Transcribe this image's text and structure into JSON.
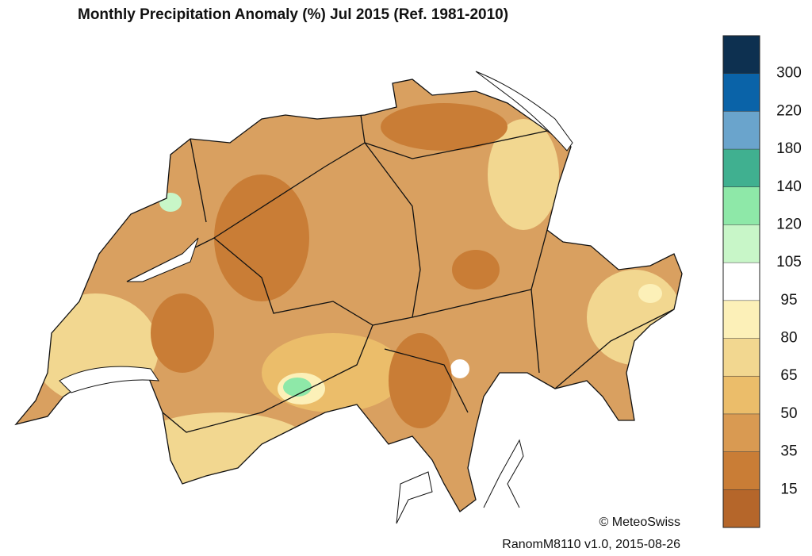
{
  "title": "Monthly Precipitation Anomaly (%) Jul 2015  (Ref. 1981-2010)",
  "colorbar": {
    "levels": [
      300,
      220,
      180,
      140,
      120,
      105,
      95,
      80,
      65,
      50,
      35,
      15
    ],
    "colors": [
      "#0d3050",
      "#0a63a8",
      "#6aa4cc",
      "#40b090",
      "#8ee8a8",
      "#c8f6c8",
      "#ffffff",
      "#fcf0b8",
      "#f2d790",
      "#ebbd6a",
      "#d99a52",
      "#c97d36",
      "#b5662a"
    ]
  },
  "credit": "© MeteoSwiss",
  "version": "RanomM8110 v1.0, 2015-08-26"
}
